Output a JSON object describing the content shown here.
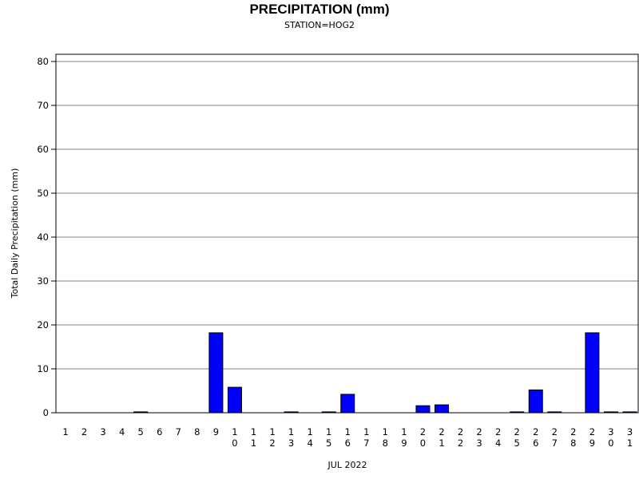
{
  "chart_data": {
    "type": "bar",
    "title": "PRECIPITATION (mm)",
    "subtitle": "STATION=HOG2",
    "xlabel": "JUL 2022",
    "ylabel": "Total Daily Precipitation (mm)",
    "ylim": [
      0,
      80
    ],
    "yticks": [
      "0",
      "10",
      "20",
      "30",
      "40",
      "50",
      "60",
      "70",
      "80"
    ],
    "grid": true,
    "categories": [
      "1",
      "2",
      "3",
      "4",
      "5",
      "6",
      "7",
      "8",
      "9",
      "10",
      "11",
      "12",
      "13",
      "14",
      "15",
      "16",
      "17",
      "18",
      "19",
      "20",
      "21",
      "22",
      "23",
      "24",
      "25",
      "26",
      "27",
      "28",
      "29",
      "30",
      "31"
    ],
    "values": [
      0,
      0,
      0,
      0,
      0.2,
      0,
      0,
      0,
      18.2,
      5.8,
      0,
      0,
      0.2,
      0,
      0.2,
      4.2,
      0,
      0,
      0,
      1.6,
      1.8,
      0,
      0,
      0,
      0.2,
      5.2,
      0.2,
      0,
      18.2,
      0.2,
      0.2
    ],
    "bar_color": "#0000ff"
  }
}
